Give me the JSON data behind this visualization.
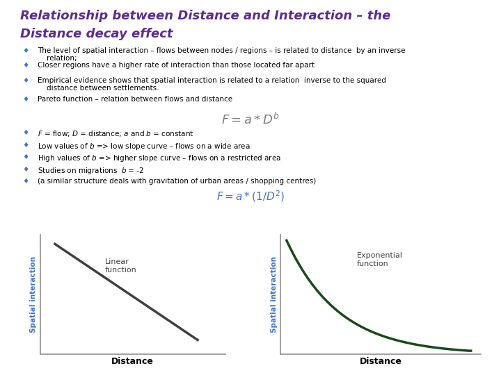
{
  "title_line1": "Relationship between Distance and Interaction – the",
  "title_line2": "Distance decay effect",
  "title_color": "#5B2D8E",
  "title_fontsize": 13,
  "bg_color": "#FFFFFF",
  "bullet_color": "#4472C4",
  "bullet_symbol": "♦",
  "bullet_fontsize": 7.5,
  "bullets_top": [
    "The level of spatial interaction – flows between nodes / regions – is related to distance  by an inverse\n    relation;",
    "Closer regions have a higher rate of interaction than those located far apart",
    "Empirical evidence shows that spatial interaction is related to a relation  inverse to the squared\n    distance between settlements.",
    "Pareto function – relation between flows and distance"
  ],
  "formula1": "$F = a*D^b$",
  "formula1_color": "#808080",
  "formula1_fontsize": 13,
  "bullets_bottom": [
    "$F$ = flow; $D$ = distance; $a$ and $b$ = constant",
    "Low values of $b$ => low slope curve – flows on a wide area",
    "High values of $b$ => higher slope curve – flows on a restricted area",
    "Studies on migrations  $b$ = -2",
    "(a similar structure deals with gravitation of urban areas / shopping centres)"
  ],
  "formula2": "$F = a*(1/D^2)$",
  "formula2_color": "#4472C4",
  "formula2_fontsize": 11,
  "axis_color": "#909090",
  "linear_color": "#404040",
  "exponential_color": "#1A4A1A",
  "spatial_interaction_label_color": "#4472C4",
  "distance_label_color": "#000000",
  "distance_label_fontsize": 9,
  "spatial_fontsize": 7.5,
  "annotation_fontsize": 8,
  "annotation_color": "#404040"
}
